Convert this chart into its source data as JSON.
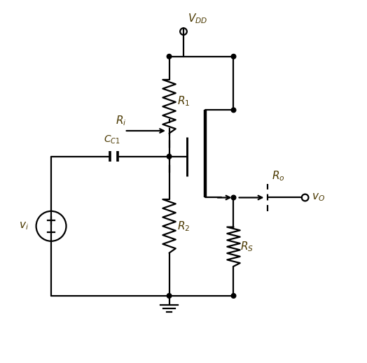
{
  "background_color": "#ffffff",
  "line_color": "#000000",
  "text_color": "#4a3800",
  "fig_width": 5.24,
  "fig_height": 5.19,
  "dpi": 100,
  "lw": 1.6
}
